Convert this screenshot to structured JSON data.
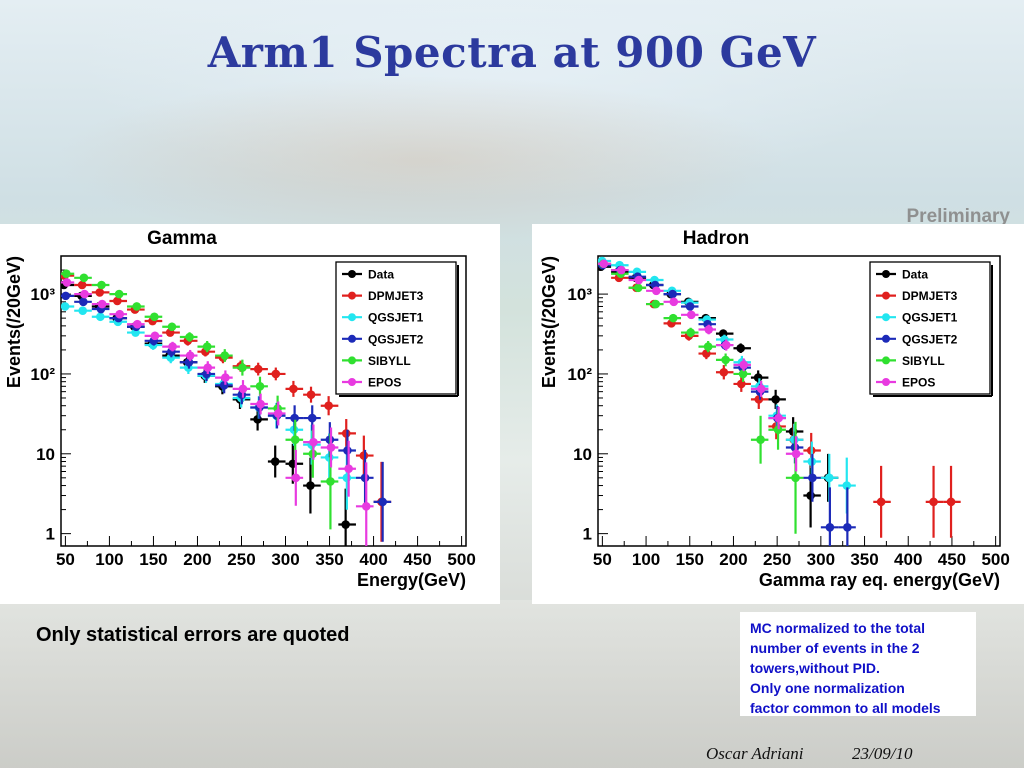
{
  "slide": {
    "title": "Arm1 Spectra at 900 GeV",
    "badge": "Preliminary",
    "note_left": "Only statistical errors are quoted",
    "note_right_lines": [
      "MC normalized to the total",
      "number of events in the 2",
      "towers,without PID.",
      "Only one normalization",
      "factor common to all models"
    ],
    "footer_author": "Oscar Adriani",
    "footer_date": "23/09/10"
  },
  "chart_data": [
    {
      "type": "scatter",
      "title": "Gamma",
      "xlabel": "Energy(GeV)",
      "ylabel": "Events(/20GeV)",
      "xlim": [
        45,
        505
      ],
      "ylim": [
        0.7,
        3000
      ],
      "yscale": "log",
      "x_ticks": [
        50,
        100,
        150,
        200,
        250,
        300,
        350,
        400,
        450,
        500
      ],
      "y_ticks": [
        {
          "v": 1,
          "label": "1"
        },
        {
          "v": 10,
          "label": "10"
        },
        {
          "v": 100,
          "label": "10²"
        },
        {
          "v": 1000,
          "label": "10³"
        }
      ],
      "legend_position": "top-right",
      "series": [
        {
          "name": "Data",
          "color": "#000000",
          "x": [
            50,
            70,
            90,
            110,
            130,
            150,
            170,
            190,
            210,
            230,
            250,
            270,
            290,
            310,
            330,
            370
          ],
          "y": [
            1300,
            950,
            700,
            500,
            390,
            240,
            170,
            140,
            95,
            70,
            48,
            27,
            8,
            7.5,
            4,
            1.3
          ],
          "err": [
            0.03,
            0.03,
            0.04,
            0.04,
            0.05,
            0.06,
            0.07,
            0.08,
            0.09,
            0.1,
            0.12,
            0.14,
            0.2,
            0.25,
            0.35,
            0.45
          ]
        },
        {
          "name": "DPMJET3",
          "color": "#e0201e",
          "x": [
            50,
            70,
            90,
            110,
            130,
            150,
            170,
            190,
            210,
            230,
            250,
            270,
            290,
            310,
            330,
            350,
            370,
            390,
            410
          ],
          "y": [
            1700,
            1300,
            1050,
            820,
            640,
            460,
            330,
            260,
            190,
            160,
            125,
            115,
            100,
            65,
            55,
            40,
            18,
            9.5,
            2.5
          ],
          "err": [
            0.03,
            0.03,
            0.03,
            0.04,
            0.04,
            0.05,
            0.05,
            0.06,
            0.06,
            0.07,
            0.07,
            0.08,
            0.08,
            0.1,
            0.1,
            0.12,
            0.18,
            0.25,
            0.5
          ]
        },
        {
          "name": "QGSJET1",
          "color": "#22e6f0",
          "x": [
            50,
            70,
            90,
            110,
            130,
            150,
            170,
            190,
            210,
            230,
            250,
            270,
            290,
            310,
            330,
            350,
            370
          ],
          "y": [
            700,
            620,
            520,
            450,
            330,
            230,
            160,
            120,
            95,
            75,
            50,
            38,
            30,
            20,
            13,
            9,
            5
          ],
          "err": [
            0.03,
            0.03,
            0.04,
            0.04,
            0.05,
            0.06,
            0.07,
            0.08,
            0.09,
            0.1,
            0.12,
            0.14,
            0.16,
            0.2,
            0.25,
            0.3,
            0.4
          ]
        },
        {
          "name": "QGSJET2",
          "color": "#1c2ab8",
          "x": [
            50,
            70,
            90,
            110,
            130,
            150,
            170,
            190,
            210,
            230,
            250,
            270,
            290,
            310,
            330,
            350,
            370,
            390,
            410
          ],
          "y": [
            950,
            800,
            650,
            500,
            390,
            260,
            190,
            140,
            100,
            72,
            55,
            38,
            30,
            28,
            28,
            15,
            11,
            5,
            2.5
          ],
          "err": [
            0.03,
            0.03,
            0.04,
            0.04,
            0.05,
            0.06,
            0.07,
            0.08,
            0.09,
            0.1,
            0.12,
            0.14,
            0.16,
            0.16,
            0.16,
            0.22,
            0.26,
            0.35,
            0.5
          ]
        },
        {
          "name": "SIBYLL",
          "color": "#30e030",
          "x": [
            50,
            70,
            90,
            110,
            130,
            150,
            170,
            190,
            210,
            230,
            250,
            270,
            290,
            310,
            330,
            350
          ],
          "y": [
            1800,
            1600,
            1300,
            1000,
            700,
            520,
            390,
            290,
            220,
            170,
            120,
            70,
            37,
            15,
            10,
            4.5
          ],
          "err": [
            0.03,
            0.03,
            0.03,
            0.03,
            0.04,
            0.04,
            0.05,
            0.06,
            0.07,
            0.08,
            0.1,
            0.12,
            0.16,
            0.25,
            0.3,
            0.6
          ]
        },
        {
          "name": "EPOS",
          "color": "#e83ae0",
          "x": [
            50,
            70,
            90,
            110,
            130,
            150,
            170,
            190,
            210,
            230,
            250,
            270,
            290,
            310,
            330,
            350,
            370,
            390
          ],
          "y": [
            1400,
            1000,
            750,
            560,
            420,
            300,
            220,
            170,
            120,
            90,
            65,
            42,
            32,
            5,
            14,
            12,
            6.5,
            2.2
          ],
          "err": [
            0.03,
            0.03,
            0.04,
            0.04,
            0.05,
            0.05,
            0.06,
            0.07,
            0.08,
            0.09,
            0.11,
            0.13,
            0.15,
            0.35,
            0.22,
            0.25,
            0.35,
            0.55
          ]
        }
      ]
    },
    {
      "type": "scatter",
      "title": "Hadron",
      "xlabel": "Gamma ray eq. energy(GeV)",
      "ylabel": "Events(/20GeV)",
      "xlim": [
        45,
        505
      ],
      "ylim": [
        0.7,
        3000
      ],
      "yscale": "log",
      "x_ticks": [
        50,
        100,
        150,
        200,
        250,
        300,
        350,
        400,
        450,
        500
      ],
      "y_ticks": [
        {
          "v": 1,
          "label": "1"
        },
        {
          "v": 10,
          "label": "10"
        },
        {
          "v": 100,
          "label": "10²"
        },
        {
          "v": 1000,
          "label": "10³"
        }
      ],
      "legend_position": "top-right",
      "series": [
        {
          "name": "Data",
          "color": "#000000",
          "x": [
            50,
            70,
            90,
            110,
            130,
            150,
            170,
            190,
            210,
            230,
            250,
            270,
            290,
            310
          ],
          "y": [
            2200,
            1900,
            1600,
            1300,
            1000,
            800,
            500,
            320,
            210,
            90,
            48,
            19,
            3,
            5
          ],
          "err": [
            0.02,
            0.02,
            0.02,
            0.03,
            0.03,
            0.03,
            0.04,
            0.05,
            0.06,
            0.09,
            0.12,
            0.18,
            0.4,
            0.3
          ]
        },
        {
          "name": "DPMJET3",
          "color": "#e0201e",
          "x": [
            70,
            90,
            110,
            130,
            150,
            170,
            190,
            210,
            230,
            250,
            270,
            290,
            370,
            430,
            450
          ],
          "y": [
            1600,
            1200,
            750,
            430,
            300,
            180,
            105,
            75,
            48,
            22,
            15,
            11,
            2.5,
            2.5,
            2.5
          ],
          "err": [
            0.03,
            0.03,
            0.04,
            0.05,
            0.06,
            0.07,
            0.09,
            0.1,
            0.12,
            0.16,
            0.2,
            0.22,
            0.45,
            0.45,
            0.45
          ]
        },
        {
          "name": "QGSJET1",
          "color": "#22e6f0",
          "x": [
            50,
            70,
            90,
            110,
            130,
            150,
            170,
            190,
            210,
            230,
            250,
            270,
            290,
            310,
            330
          ],
          "y": [
            2600,
            2300,
            1900,
            1500,
            1100,
            780,
            480,
            270,
            140,
            70,
            30,
            15,
            8,
            5,
            4
          ],
          "err": [
            0.02,
            0.02,
            0.02,
            0.03,
            0.03,
            0.04,
            0.05,
            0.06,
            0.08,
            0.1,
            0.14,
            0.2,
            0.25,
            0.3,
            0.35
          ]
        },
        {
          "name": "QGSJET2",
          "color": "#1c2ab8",
          "x": [
            50,
            70,
            90,
            110,
            130,
            150,
            170,
            190,
            210,
            230,
            250,
            270,
            290,
            310,
            330
          ],
          "y": [
            2300,
            2000,
            1650,
            1300,
            1000,
            700,
            420,
            230,
            120,
            60,
            28,
            12,
            5,
            1.2,
            1.2
          ],
          "err": [
            0.02,
            0.02,
            0.02,
            0.03,
            0.03,
            0.04,
            0.05,
            0.06,
            0.08,
            0.1,
            0.15,
            0.2,
            0.3,
            0.5,
            0.5
          ]
        },
        {
          "name": "SIBYLL",
          "color": "#30e030",
          "x": [
            50,
            70,
            90,
            110,
            130,
            150,
            170,
            190,
            210,
            230,
            250,
            270
          ],
          "y": [
            2400,
            1800,
            1200,
            750,
            500,
            330,
            220,
            150,
            100,
            15,
            20,
            5
          ],
          "err": [
            0.02,
            0.02,
            0.03,
            0.04,
            0.05,
            0.06,
            0.07,
            0.08,
            0.1,
            0.3,
            0.25,
            0.7
          ]
        },
        {
          "name": "EPOS",
          "color": "#e83ae0",
          "x": [
            50,
            70,
            90,
            110,
            130,
            150,
            170,
            190,
            210,
            230,
            250,
            270
          ],
          "y": [
            2400,
            2000,
            1500,
            1100,
            800,
            550,
            360,
            230,
            130,
            65,
            28,
            10
          ],
          "err": [
            0.02,
            0.02,
            0.03,
            0.03,
            0.04,
            0.05,
            0.06,
            0.07,
            0.08,
            0.1,
            0.14,
            0.22
          ]
        }
      ]
    }
  ]
}
